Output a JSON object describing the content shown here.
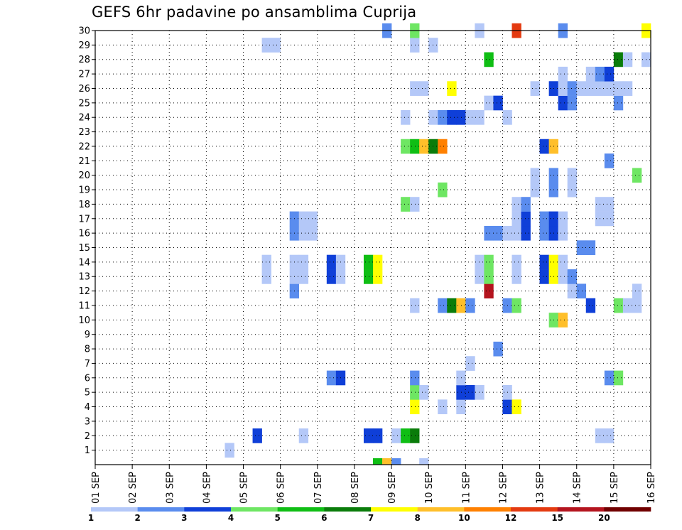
{
  "chart_data": {
    "type": "heatmap",
    "title": "GEFS 6hr padavine po ansamblima Cuprija",
    "xlabel": "",
    "ylabel": "",
    "x_tick_labels": [
      "01 SEP",
      "02 SEP",
      "03 SEP",
      "04 SEP",
      "05 SEP",
      "06 SEP",
      "07 SEP",
      "08 SEP",
      "09 SEP",
      "10 SEP",
      "11 SEP",
      "12 SEP",
      "13 SEP",
      "14 SEP",
      "15 SEP",
      "16 SEP"
    ],
    "y_tick_labels": [
      "1",
      "2",
      "3",
      "4",
      "5",
      "6",
      "7",
      "8",
      "9",
      "10",
      "11",
      "12",
      "13",
      "14",
      "15",
      "16",
      "17",
      "18",
      "19",
      "20",
      "21",
      "22",
      "23",
      "24",
      "25",
      "26",
      "27",
      "28",
      "29",
      "30"
    ],
    "x_unit": "6-hour step from 01 SEP 00 UTC",
    "y_range": [
      0,
      30
    ],
    "x_range": [
      0,
      60
    ],
    "grid": true,
    "legend": {
      "placement": "bottom",
      "labels": [
        "1",
        "2",
        "3",
        "4",
        "5",
        "6",
        "7",
        "8",
        "10",
        "12",
        "15",
        "20"
      ],
      "colors": [
        "#b4c8f8",
        "#5a8cee",
        "#0f3fd8",
        "#6ee663",
        "#0fbe14",
        "#0a7c0a",
        "#ffff00",
        "#ffbf2a",
        "#ff8000",
        "#e43a10",
        "#b4141e",
        "#700000"
      ]
    },
    "cells": [
      [
        1,
        15,
        1
      ],
      [
        2,
        18,
        3
      ],
      [
        2,
        23,
        1
      ],
      [
        2,
        30,
        3
      ],
      [
        2,
        31,
        3
      ],
      [
        2,
        33,
        1
      ],
      [
        2,
        34,
        5
      ],
      [
        2,
        35,
        6
      ],
      [
        2,
        55,
        1
      ],
      [
        2,
        56,
        1
      ],
      [
        4,
        35,
        7
      ],
      [
        4,
        38,
        1
      ],
      [
        4,
        40,
        1
      ],
      [
        4,
        45,
        3
      ],
      [
        4,
        46,
        7
      ],
      [
        5,
        35,
        4
      ],
      [
        5,
        36,
        1
      ],
      [
        5,
        40,
        3
      ],
      [
        5,
        41,
        3
      ],
      [
        5,
        42,
        1
      ],
      [
        5,
        45,
        1
      ],
      [
        6,
        26,
        2
      ],
      [
        6,
        27,
        3
      ],
      [
        6,
        35,
        2
      ],
      [
        6,
        40,
        1
      ],
      [
        6,
        56,
        2
      ],
      [
        6,
        57,
        4
      ],
      [
        7,
        41,
        1
      ],
      [
        8,
        44,
        2
      ],
      [
        10,
        50,
        4
      ],
      [
        10,
        51,
        8
      ],
      [
        11,
        35,
        1
      ],
      [
        11,
        38,
        2
      ],
      [
        11,
        39,
        6
      ],
      [
        11,
        40,
        8
      ],
      [
        11,
        41,
        2
      ],
      [
        11,
        45,
        2
      ],
      [
        11,
        46,
        4
      ],
      [
        11,
        54,
        3
      ],
      [
        11,
        57,
        4
      ],
      [
        11,
        58,
        1
      ],
      [
        11,
        59,
        1
      ],
      [
        12,
        22,
        2
      ],
      [
        12,
        43,
        11
      ],
      [
        12,
        52,
        1
      ],
      [
        12,
        53,
        2
      ],
      [
        12,
        59,
        1
      ],
      [
        13,
        19,
        1
      ],
      [
        13,
        22,
        1
      ],
      [
        13,
        23,
        1
      ],
      [
        13,
        26,
        3
      ],
      [
        13,
        27,
        1
      ],
      [
        13,
        30,
        5
      ],
      [
        13,
        31,
        7
      ],
      [
        13,
        42,
        1
      ],
      [
        13,
        43,
        4
      ],
      [
        13,
        46,
        1
      ],
      [
        13,
        49,
        3
      ],
      [
        13,
        50,
        7
      ],
      [
        13,
        51,
        1
      ],
      [
        13,
        52,
        2
      ],
      [
        14,
        19,
        1
      ],
      [
        14,
        22,
        1
      ],
      [
        14,
        23,
        1
      ],
      [
        14,
        26,
        3
      ],
      [
        14,
        27,
        1
      ],
      [
        14,
        30,
        5
      ],
      [
        14,
        31,
        7
      ],
      [
        14,
        42,
        1
      ],
      [
        14,
        43,
        4
      ],
      [
        14,
        46,
        1
      ],
      [
        14,
        49,
        3
      ],
      [
        14,
        50,
        7
      ],
      [
        14,
        51,
        1
      ],
      [
        15,
        53,
        2
      ],
      [
        15,
        54,
        2
      ],
      [
        16,
        22,
        2
      ],
      [
        16,
        23,
        1
      ],
      [
        16,
        24,
        1
      ],
      [
        16,
        43,
        2
      ],
      [
        16,
        44,
        2
      ],
      [
        16,
        45,
        1
      ],
      [
        16,
        46,
        1
      ],
      [
        16,
        47,
        3
      ],
      [
        16,
        49,
        2
      ],
      [
        16,
        50,
        3
      ],
      [
        16,
        51,
        1
      ],
      [
        17,
        22,
        2
      ],
      [
        17,
        23,
        1
      ],
      [
        17,
        24,
        1
      ],
      [
        17,
        46,
        1
      ],
      [
        17,
        47,
        3
      ],
      [
        17,
        49,
        2
      ],
      [
        17,
        50,
        3
      ],
      [
        17,
        51,
        1
      ],
      [
        17,
        55,
        1
      ],
      [
        17,
        56,
        1
      ],
      [
        18,
        34,
        4
      ],
      [
        18,
        35,
        1
      ],
      [
        18,
        46,
        1
      ],
      [
        18,
        47,
        2
      ],
      [
        18,
        55,
        1
      ],
      [
        18,
        56,
        1
      ],
      [
        19,
        38,
        4
      ],
      [
        19,
        48,
        1
      ],
      [
        19,
        50,
        2
      ],
      [
        19,
        52,
        1
      ],
      [
        20,
        48,
        1
      ],
      [
        20,
        50,
        2
      ],
      [
        20,
        52,
        1
      ],
      [
        20,
        59,
        4
      ],
      [
        21,
        56,
        2
      ],
      [
        22,
        34,
        4
      ],
      [
        22,
        35,
        5
      ],
      [
        22,
        36,
        8
      ],
      [
        22,
        37,
        6
      ],
      [
        22,
        38,
        9
      ],
      [
        22,
        49,
        3
      ],
      [
        22,
        50,
        8
      ],
      [
        24,
        34,
        1
      ],
      [
        24,
        37,
        1
      ],
      [
        24,
        38,
        2
      ],
      [
        24,
        39,
        3
      ],
      [
        24,
        40,
        3
      ],
      [
        24,
        41,
        1
      ],
      [
        24,
        42,
        1
      ],
      [
        24,
        45,
        1
      ],
      [
        25,
        43,
        1
      ],
      [
        25,
        44,
        3
      ],
      [
        25,
        51,
        3
      ],
      [
        25,
        52,
        2
      ],
      [
        25,
        57,
        2
      ],
      [
        26,
        35,
        1
      ],
      [
        26,
        36,
        1
      ],
      [
        26,
        39,
        7
      ],
      [
        26,
        48,
        1
      ],
      [
        26,
        50,
        3
      ],
      [
        26,
        51,
        1
      ],
      [
        26,
        52,
        2
      ],
      [
        26,
        53,
        1
      ],
      [
        26,
        54,
        1
      ],
      [
        26,
        55,
        1
      ],
      [
        26,
        56,
        1
      ],
      [
        26,
        57,
        1
      ],
      [
        26,
        58,
        1
      ],
      [
        27,
        51,
        1
      ],
      [
        27,
        54,
        1
      ],
      [
        27,
        55,
        2
      ],
      [
        27,
        56,
        3
      ],
      [
        28,
        43,
        5
      ],
      [
        28,
        57,
        6
      ],
      [
        28,
        58,
        1
      ],
      [
        28,
        60,
        1
      ],
      [
        29,
        19,
        1
      ],
      [
        29,
        20,
        1
      ],
      [
        29,
        35,
        1
      ],
      [
        29,
        37,
        1
      ],
      [
        30,
        32,
        2
      ],
      [
        30,
        35,
        4
      ],
      [
        30,
        42,
        1
      ],
      [
        30,
        46,
        10
      ],
      [
        30,
        51,
        2
      ],
      [
        30,
        60,
        7
      ]
    ],
    "ensemble_cells": [
      [
        31,
        5
      ],
      [
        32,
        8
      ],
      [
        33,
        2
      ],
      [
        36,
        1
      ]
    ]
  }
}
